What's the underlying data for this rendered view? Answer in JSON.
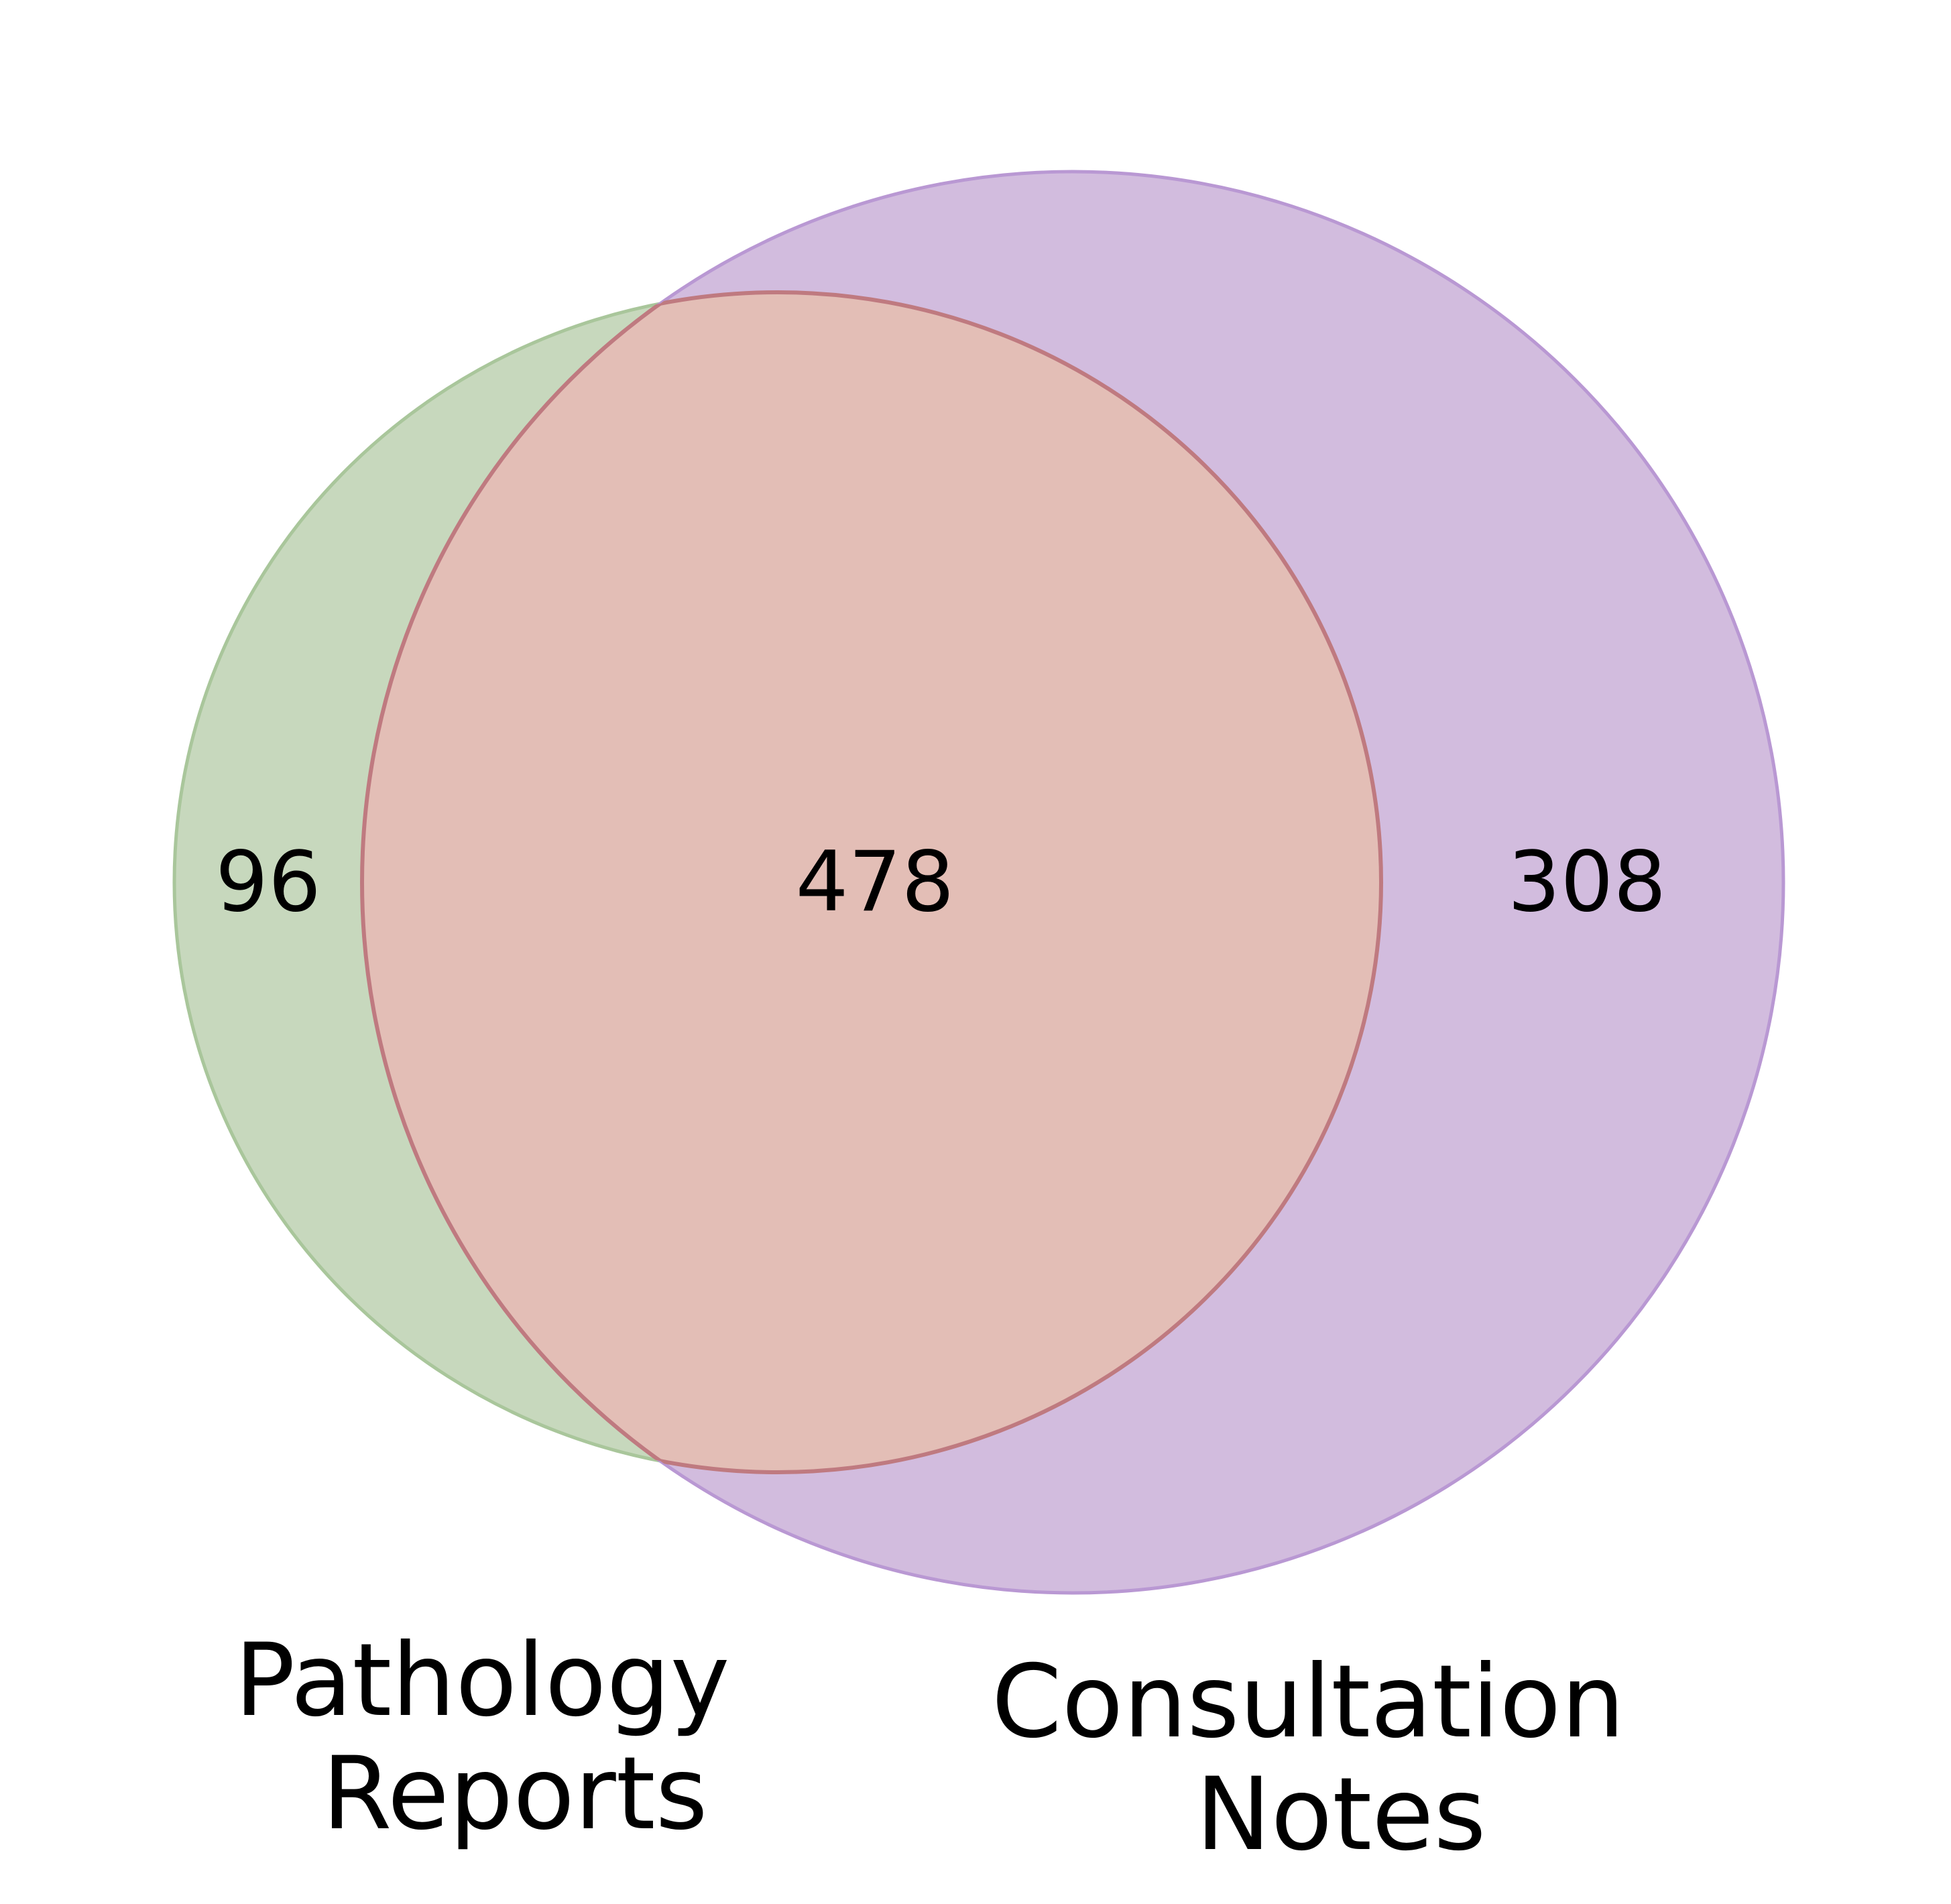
{
  "venn": {
    "sets": [
      {
        "label_lines": [
          "Pathology",
          "Reports"
        ],
        "only_count": "96",
        "fill": "#c7d8bd",
        "stroke": "#a9c69b"
      },
      {
        "label_lines": [
          "Consultation",
          "Notes"
        ],
        "only_count": "308",
        "fill": "#d2bcde",
        "stroke": "#b998d3"
      }
    ],
    "intersection": {
      "count": "478",
      "fill": "#e3beb6",
      "stroke": "#bf7a80"
    }
  }
}
